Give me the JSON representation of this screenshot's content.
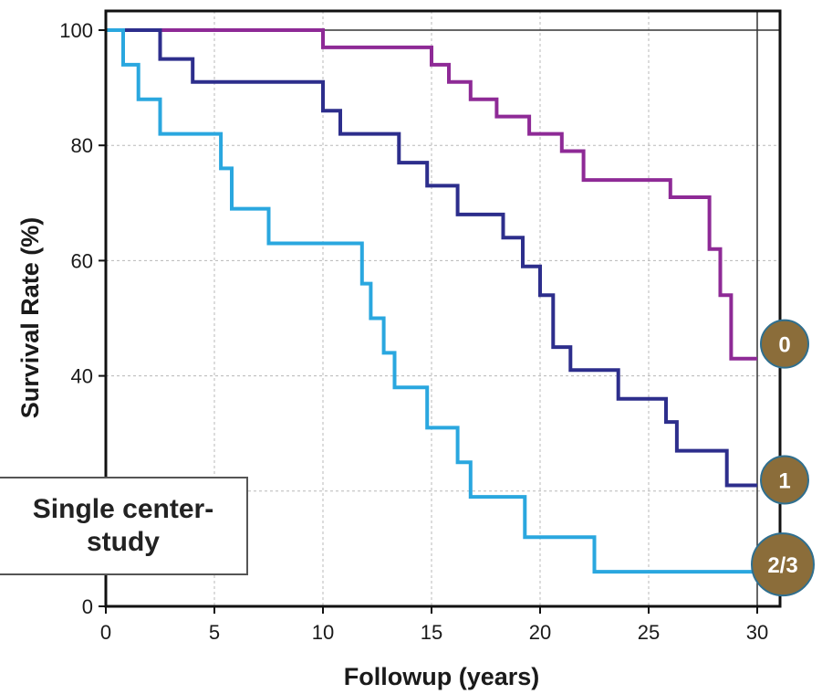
{
  "chart_data": {
    "type": "line",
    "style": "step",
    "title": "",
    "xlabel": "Followup (years)",
    "ylabel": "Survival Rate (%)",
    "xlim": [
      0,
      31
    ],
    "ylim": [
      0,
      100
    ],
    "x_ticks": [
      0,
      5,
      10,
      15,
      20,
      25,
      30
    ],
    "y_ticks": [
      0,
      20,
      40,
      60,
      80,
      100
    ],
    "y_tick_labels": [
      "0",
      "",
      "40",
      "60",
      "80",
      "100"
    ],
    "grid": true,
    "reference_lines": {
      "y": 100,
      "x": 30
    },
    "series": [
      {
        "name": "0",
        "color": "#8e2a96",
        "points": [
          [
            0,
            100
          ],
          [
            10,
            100
          ],
          [
            10,
            97
          ],
          [
            15,
            97
          ],
          [
            15,
            94
          ],
          [
            15.8,
            94
          ],
          [
            15.8,
            91
          ],
          [
            16.8,
            91
          ],
          [
            16.8,
            88
          ],
          [
            18,
            88
          ],
          [
            18,
            85
          ],
          [
            19.5,
            85
          ],
          [
            19.5,
            82
          ],
          [
            21,
            82
          ],
          [
            21,
            79
          ],
          [
            22,
            79
          ],
          [
            22,
            74
          ],
          [
            26,
            74
          ],
          [
            26,
            71
          ],
          [
            27.8,
            71
          ],
          [
            27.8,
            62
          ],
          [
            28.3,
            62
          ],
          [
            28.3,
            54
          ],
          [
            28.8,
            54
          ],
          [
            28.8,
            43
          ],
          [
            30,
            43
          ]
        ]
      },
      {
        "name": "1",
        "color": "#2d2e8c",
        "points": [
          [
            0,
            100
          ],
          [
            2.5,
            100
          ],
          [
            2.5,
            95
          ],
          [
            4,
            95
          ],
          [
            4,
            91
          ],
          [
            10,
            91
          ],
          [
            10,
            86
          ],
          [
            10.8,
            86
          ],
          [
            10.8,
            82
          ],
          [
            13.5,
            82
          ],
          [
            13.5,
            77
          ],
          [
            14.8,
            77
          ],
          [
            14.8,
            73
          ],
          [
            16.2,
            73
          ],
          [
            16.2,
            68
          ],
          [
            18.3,
            68
          ],
          [
            18.3,
            64
          ],
          [
            19.2,
            64
          ],
          [
            19.2,
            59
          ],
          [
            20,
            59
          ],
          [
            20,
            54
          ],
          [
            20.6,
            54
          ],
          [
            20.6,
            45
          ],
          [
            21.4,
            45
          ],
          [
            21.4,
            41
          ],
          [
            23.6,
            41
          ],
          [
            23.6,
            36
          ],
          [
            25.8,
            36
          ],
          [
            25.8,
            32
          ],
          [
            26.3,
            32
          ],
          [
            26.3,
            27
          ],
          [
            28.6,
            27
          ],
          [
            28.6,
            21
          ],
          [
            30,
            21
          ]
        ]
      },
      {
        "name": "2/3",
        "color": "#2aa7df",
        "points": [
          [
            0,
            100
          ],
          [
            0.8,
            100
          ],
          [
            0.8,
            94
          ],
          [
            1.5,
            94
          ],
          [
            1.5,
            88
          ],
          [
            2.5,
            88
          ],
          [
            2.5,
            82
          ],
          [
            5.3,
            82
          ],
          [
            5.3,
            76
          ],
          [
            5.8,
            76
          ],
          [
            5.8,
            69
          ],
          [
            7.5,
            69
          ],
          [
            7.5,
            63
          ],
          [
            11.8,
            63
          ],
          [
            11.8,
            56
          ],
          [
            12.2,
            56
          ],
          [
            12.2,
            50
          ],
          [
            12.8,
            50
          ],
          [
            12.8,
            44
          ],
          [
            13.3,
            44
          ],
          [
            13.3,
            38
          ],
          [
            14.8,
            38
          ],
          [
            14.8,
            31
          ],
          [
            16.2,
            31
          ],
          [
            16.2,
            25
          ],
          [
            16.8,
            25
          ],
          [
            16.8,
            19
          ],
          [
            19.3,
            19
          ],
          [
            19.3,
            12
          ],
          [
            22.5,
            12
          ],
          [
            22.5,
            6
          ],
          [
            30,
            6
          ]
        ]
      }
    ],
    "end_badges": [
      {
        "label": "0",
        "color": "#8b6d3a"
      },
      {
        "label": "1",
        "color": "#8b6d3a"
      },
      {
        "label": "2/3",
        "color": "#8b6d3a"
      }
    ],
    "annotation": {
      "line1": "Single center-",
      "line2": "study"
    }
  }
}
